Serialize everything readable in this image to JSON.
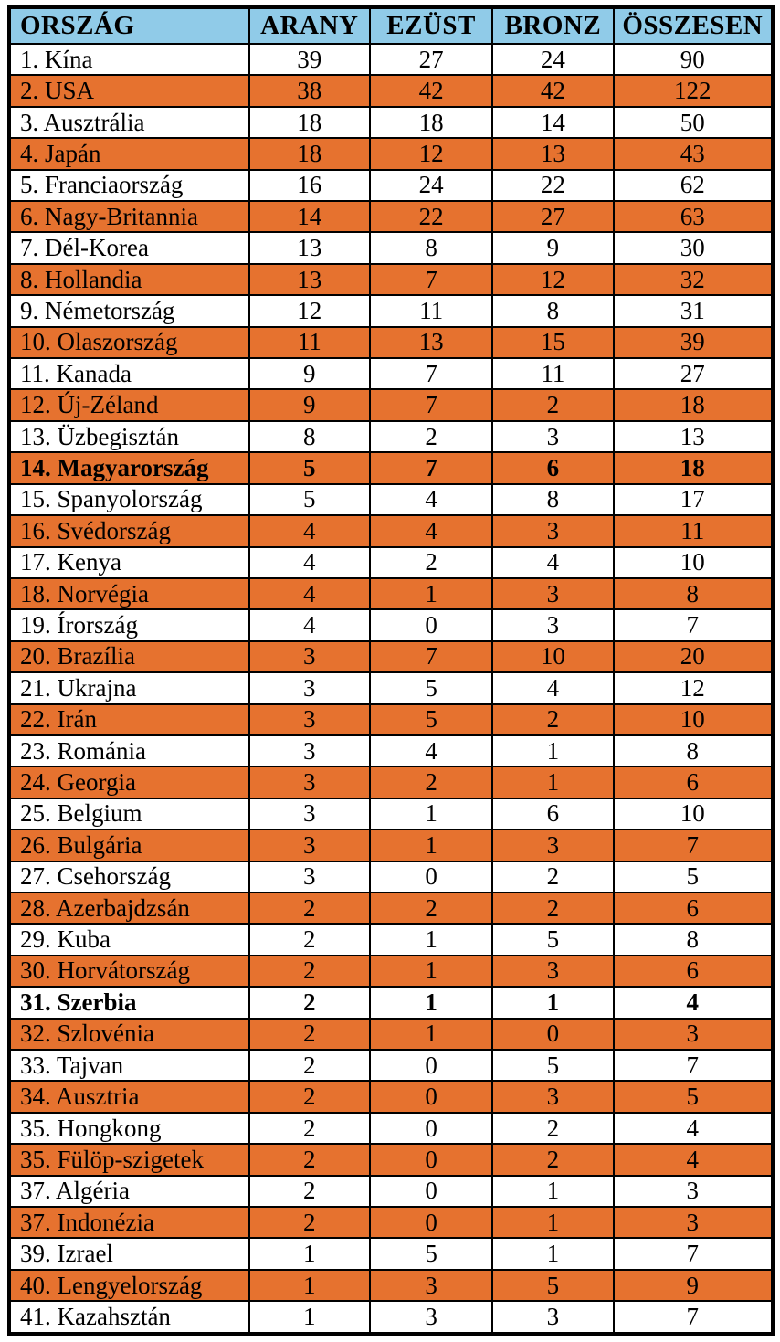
{
  "table": {
    "columns": [
      "ORSZÁG",
      "ARANY",
      "EZÜST",
      "BRONZ",
      "ÖSSZESEN"
    ],
    "colors": {
      "header_bg": "#90CBE8",
      "stripe_bg": "#E6722F",
      "border": "#000000",
      "text": "#000000"
    },
    "rows": [
      {
        "country": "1. Kína",
        "gold": "39",
        "silver": "27",
        "bronze": "24",
        "total": "90",
        "shaded": false,
        "emphasis": false
      },
      {
        "country": "2. USA",
        "gold": "38",
        "silver": "42",
        "bronze": "42",
        "total": "122",
        "shaded": true,
        "emphasis": false
      },
      {
        "country": "3. Ausztrália",
        "gold": "18",
        "silver": "18",
        "bronze": "14",
        "total": "50",
        "shaded": false,
        "emphasis": false
      },
      {
        "country": "4. Japán",
        "gold": "18",
        "silver": "12",
        "bronze": "13",
        "total": "43",
        "shaded": true,
        "emphasis": false
      },
      {
        "country": "5. Franciaország",
        "gold": "16",
        "silver": "24",
        "bronze": "22",
        "total": "62",
        "shaded": false,
        "emphasis": false
      },
      {
        "country": "6. Nagy-Britannia",
        "gold": "14",
        "silver": "22",
        "bronze": "27",
        "total": "63",
        "shaded": true,
        "emphasis": false
      },
      {
        "country": "7. Dél-Korea",
        "gold": "13",
        "silver": "8",
        "bronze": "9",
        "total": "30",
        "shaded": false,
        "emphasis": false
      },
      {
        "country": "8. Hollandia",
        "gold": "13",
        "silver": "7",
        "bronze": "12",
        "total": "32",
        "shaded": true,
        "emphasis": false
      },
      {
        "country": "9. Németország",
        "gold": "12",
        "silver": "11",
        "bronze": "8",
        "total": "31",
        "shaded": false,
        "emphasis": false
      },
      {
        "country": "10. Olaszország",
        "gold": "11",
        "silver": "13",
        "bronze": "15",
        "total": "39",
        "shaded": true,
        "emphasis": false
      },
      {
        "country": "11. Kanada",
        "gold": "9",
        "silver": "7",
        "bronze": "11",
        "total": "27",
        "shaded": false,
        "emphasis": false
      },
      {
        "country": "12. Új-Zéland",
        "gold": "9",
        "silver": "7",
        "bronze": "2",
        "total": "18",
        "shaded": true,
        "emphasis": false
      },
      {
        "country": "13. Üzbegisztán",
        "gold": "8",
        "silver": "2",
        "bronze": "3",
        "total": "13",
        "shaded": false,
        "emphasis": false
      },
      {
        "country": "14. Magyarország",
        "gold": "5",
        "silver": "7",
        "bronze": "6",
        "total": "18",
        "shaded": true,
        "emphasis": true
      },
      {
        "country": "15. Spanyolország",
        "gold": "5",
        "silver": "4",
        "bronze": "8",
        "total": "17",
        "shaded": false,
        "emphasis": false
      },
      {
        "country": "16. Svédország",
        "gold": "4",
        "silver": "4",
        "bronze": "3",
        "total": "11",
        "shaded": true,
        "emphasis": false
      },
      {
        "country": "17. Kenya",
        "gold": "4",
        "silver": "2",
        "bronze": "4",
        "total": "10",
        "shaded": false,
        "emphasis": false
      },
      {
        "country": "18. Norvégia",
        "gold": "4",
        "silver": "1",
        "bronze": "3",
        "total": "8",
        "shaded": true,
        "emphasis": false
      },
      {
        "country": "19. Írország",
        "gold": "4",
        "silver": "0",
        "bronze": "3",
        "total": "7",
        "shaded": false,
        "emphasis": false
      },
      {
        "country": "20. Brazília",
        "gold": "3",
        "silver": "7",
        "bronze": "10",
        "total": "20",
        "shaded": true,
        "emphasis": false
      },
      {
        "country": "21. Ukrajna",
        "gold": "3",
        "silver": "5",
        "bronze": "4",
        "total": "12",
        "shaded": false,
        "emphasis": false
      },
      {
        "country": "22. Irán",
        "gold": "3",
        "silver": "5",
        "bronze": "2",
        "total": "10",
        "shaded": true,
        "emphasis": false
      },
      {
        "country": "23. Románia",
        "gold": "3",
        "silver": "4",
        "bronze": "1",
        "total": "8",
        "shaded": false,
        "emphasis": false
      },
      {
        "country": "24. Georgia",
        "gold": "3",
        "silver": "2",
        "bronze": "1",
        "total": "6",
        "shaded": true,
        "emphasis": false
      },
      {
        "country": "25. Belgium",
        "gold": "3",
        "silver": "1",
        "bronze": "6",
        "total": "10",
        "shaded": false,
        "emphasis": false
      },
      {
        "country": "26. Bulgária",
        "gold": "3",
        "silver": "1",
        "bronze": "3",
        "total": "7",
        "shaded": true,
        "emphasis": false
      },
      {
        "country": "27. Csehország",
        "gold": "3",
        "silver": "0",
        "bronze": "2",
        "total": "5",
        "shaded": false,
        "emphasis": false
      },
      {
        "country": "28. Azerbajdzsán",
        "gold": "2",
        "silver": "2",
        "bronze": "2",
        "total": "6",
        "shaded": true,
        "emphasis": false
      },
      {
        "country": "29. Kuba",
        "gold": "2",
        "silver": "1",
        "bronze": "5",
        "total": "8",
        "shaded": false,
        "emphasis": false
      },
      {
        "country": "30. Horvátország",
        "gold": "2",
        "silver": "1",
        "bronze": "3",
        "total": "6",
        "shaded": true,
        "emphasis": false
      },
      {
        "country": "31. Szerbia",
        "gold": "2",
        "silver": "1",
        "bronze": "1",
        "total": "4",
        "shaded": false,
        "emphasis": true
      },
      {
        "country": "32. Szlovénia",
        "gold": "2",
        "silver": "1",
        "bronze": "0",
        "total": "3",
        "shaded": true,
        "emphasis": false
      },
      {
        "country": "33. Tajvan",
        "gold": "2",
        "silver": "0",
        "bronze": "5",
        "total": "7",
        "shaded": false,
        "emphasis": false
      },
      {
        "country": "34. Ausztria",
        "gold": "2",
        "silver": "0",
        "bronze": "3",
        "total": "5",
        "shaded": true,
        "emphasis": false
      },
      {
        "country": "35. Hongkong",
        "gold": "2",
        "silver": "0",
        "bronze": "2",
        "total": "4",
        "shaded": false,
        "emphasis": false
      },
      {
        "country": "35. Fülöp-szigetek",
        "gold": "2",
        "silver": "0",
        "bronze": "2",
        "total": "4",
        "shaded": true,
        "emphasis": false
      },
      {
        "country": "37. Algéria",
        "gold": "2",
        "silver": "0",
        "bronze": "1",
        "total": "3",
        "shaded": false,
        "emphasis": false
      },
      {
        "country": "37. Indonézia",
        "gold": "2",
        "silver": "0",
        "bronze": "1",
        "total": "3",
        "shaded": true,
        "emphasis": false
      },
      {
        "country": "39. Izrael",
        "gold": "1",
        "silver": "5",
        "bronze": "1",
        "total": "7",
        "shaded": false,
        "emphasis": false
      },
      {
        "country": "40. Lengyelország",
        "gold": "1",
        "silver": "3",
        "bronze": "5",
        "total": "9",
        "shaded": true,
        "emphasis": false
      },
      {
        "country": "41. Kazahsztán",
        "gold": "1",
        "silver": "3",
        "bronze": "3",
        "total": "7",
        "shaded": false,
        "emphasis": false
      }
    ]
  }
}
